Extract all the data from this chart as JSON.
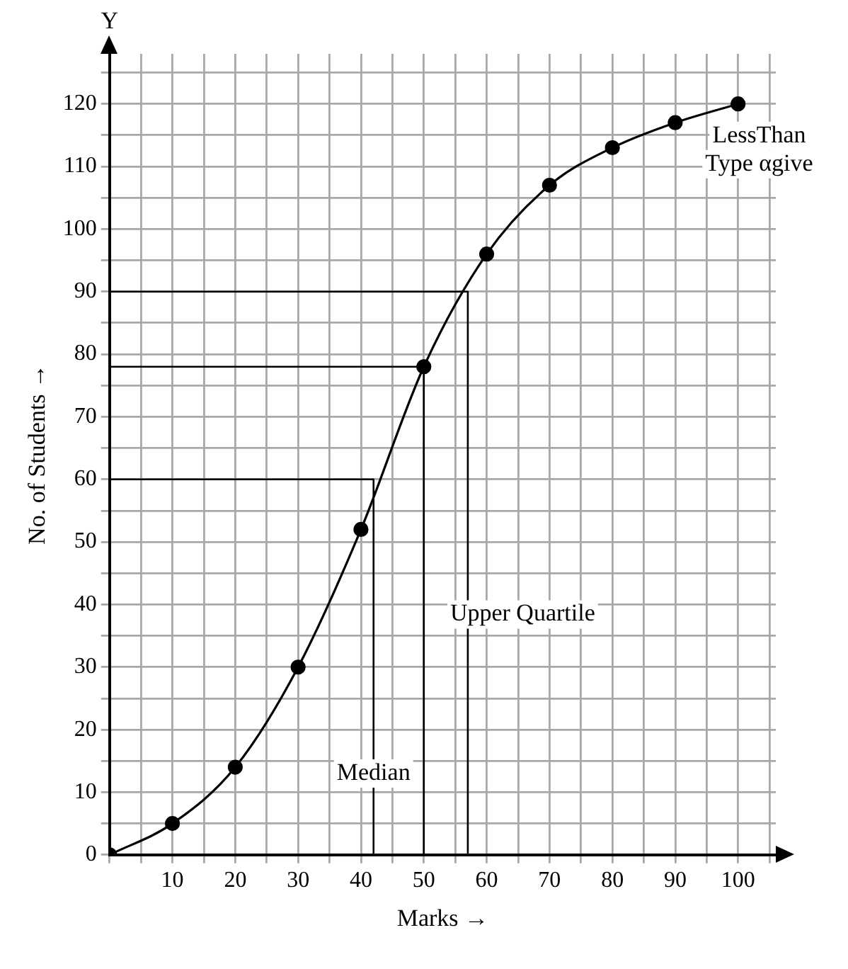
{
  "chart_data": {
    "type": "line",
    "xlabel": "Marks →",
    "ylabel": "No. of Students →",
    "x": [
      0,
      10,
      20,
      30,
      40,
      50,
      60,
      70,
      80,
      90,
      100
    ],
    "series": [
      {
        "color": "#000000",
        "values": [
          0,
          5,
          14,
          30,
          52,
          78,
          96,
          107,
          113,
          117,
          120
        ],
        "marker": "circle"
      },
      {
        "type": "line",
        "color": "#000000",
        "x": [
          0,
          42,
          42
        ],
        "values": [
          60,
          60,
          0
        ],
        "marker": "none"
      },
      {
        "type": "line",
        "color": "#000000",
        "x": [
          0,
          50,
          50
        ],
        "values": [
          78,
          78,
          0
        ],
        "marker": "none"
      },
      {
        "type": "line",
        "color": "#000000",
        "x": [
          0,
          57,
          57
        ],
        "values": [
          90,
          90,
          0
        ],
        "marker": "none"
      }
    ],
    "xlim": [
      0,
      106
    ],
    "ylim": [
      0,
      128
    ],
    "xticks": [
      {
        "value": 0,
        "label": null
      },
      {
        "value": 5,
        "label": null
      },
      10,
      {
        "value": 15,
        "label": null
      },
      20,
      {
        "value": 25,
        "label": null
      },
      30,
      {
        "value": 35,
        "label": null
      },
      40,
      {
        "value": 45,
        "label": null
      },
      50,
      {
        "value": 55,
        "label": null
      },
      60,
      {
        "value": 65,
        "label": null
      },
      70,
      {
        "value": 75,
        "label": null
      },
      80,
      {
        "value": 85,
        "label": null
      },
      90,
      {
        "value": 95,
        "label": null
      },
      100,
      {
        "value": 105,
        "label": null
      }
    ],
    "yticks": [
      0,
      {
        "value": 5,
        "label": null
      },
      10,
      {
        "value": 15,
        "label": null
      },
      20,
      {
        "value": 25,
        "label": null
      },
      30,
      {
        "value": 35,
        "label": null
      },
      40,
      {
        "value": 45,
        "label": null
      },
      50,
      {
        "value": 55,
        "label": null
      },
      60,
      {
        "value": 65,
        "label": null
      },
      70,
      {
        "value": 75,
        "label": null
      },
      80,
      {
        "value": 85,
        "label": null
      },
      90,
      {
        "value": 95,
        "label": null
      },
      100,
      {
        "value": 105,
        "label": null
      },
      110,
      {
        "value": 115,
        "label": null
      },
      120,
      {
        "value": 125,
        "label": null
      }
    ],
    "grid": true,
    "legend": false,
    "line_style": "solid",
    "annotations": [
      "Y",
      {
        "text": "Median",
        "x": 42,
        "y": 13
      },
      "Upper Quartile",
      "LessThan Type αgive"
    ]
  }
}
